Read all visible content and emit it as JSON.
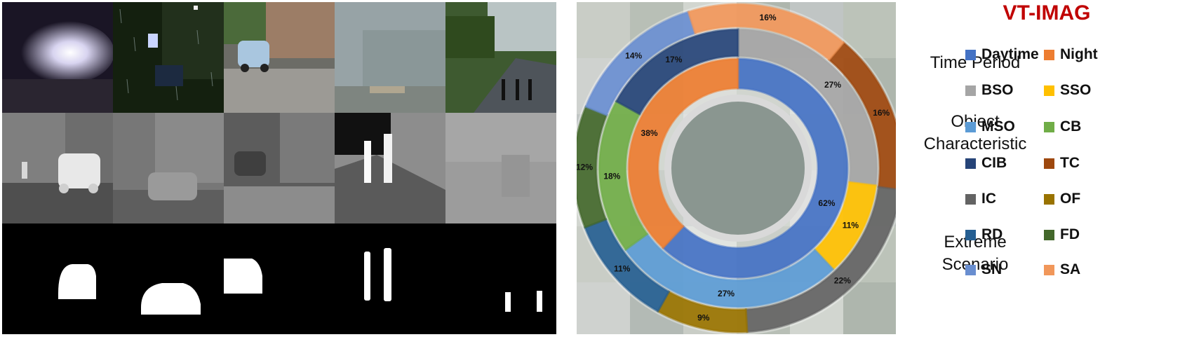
{
  "chart_data": {
    "type": "pie",
    "title": "VT-IMAG",
    "rings": [
      {
        "name": "Time Period",
        "slices": [
          {
            "label": "Daytime",
            "value": 62,
            "color": "#4472C4"
          },
          {
            "label": "Night",
            "value": 38,
            "color": "#ED7D31"
          }
        ]
      },
      {
        "name": "Object Characteristic",
        "slices": [
          {
            "label": "BSO",
            "value": 27,
            "color": "#A5A5A5"
          },
          {
            "label": "SSO",
            "value": 11,
            "color": "#FFC000"
          },
          {
            "label": "MSO",
            "value": 27,
            "color": "#5B9BD5"
          },
          {
            "label": "CB",
            "value": 18,
            "color": "#70AD47"
          },
          {
            "label": "CIB",
            "value": 17,
            "color": "#264478"
          }
        ]
      },
      {
        "name": "Extreme Scenario",
        "slices": [
          {
            "label": "TC",
            "value": 16,
            "color": "#9E480E"
          },
          {
            "label": "IC",
            "value": 22,
            "color": "#636363"
          },
          {
            "label": "OF",
            "value": 9,
            "color": "#997300"
          },
          {
            "label": "RD",
            "value": 11,
            "color": "#255E91"
          },
          {
            "label": "FD",
            "value": 12,
            "color": "#43682B"
          },
          {
            "label": "SN",
            "value": 14,
            "color": "#698ED0"
          },
          {
            "label": "SA",
            "value": 16,
            "color": "#F1975A"
          }
        ]
      }
    ],
    "legend_position": "right"
  },
  "legend": {
    "title": "VT-IMAG",
    "groups": [
      "Time Period",
      "Object Characteristic",
      "Extreme Scenario"
    ]
  }
}
